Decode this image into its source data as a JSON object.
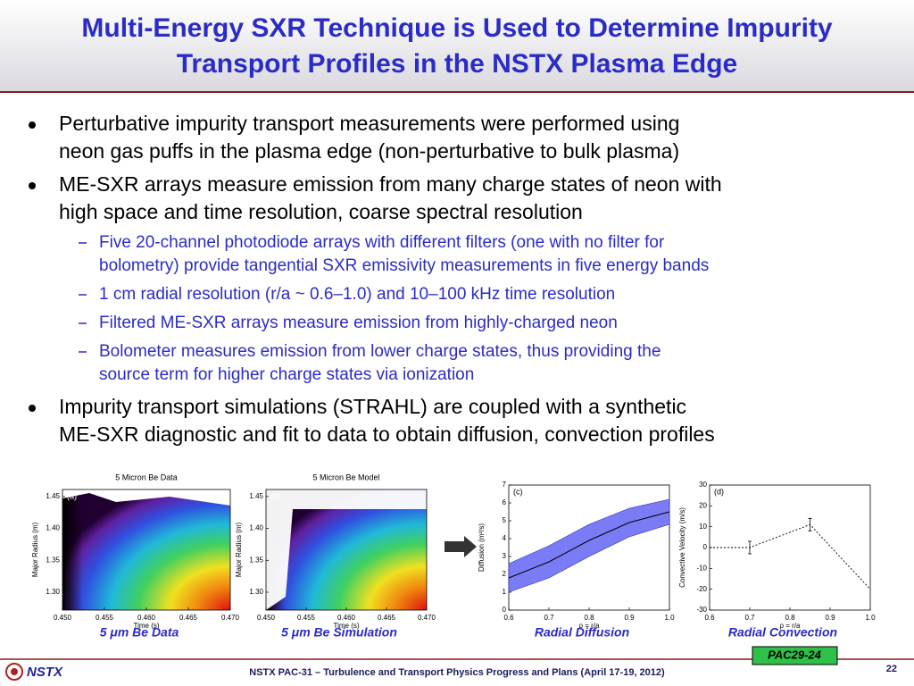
{
  "header": {
    "title_lines": [
      "Multi-Energy SXR Technique is Used to Determine Impurity",
      "Transport Profiles in the NSTX Plasma Edge"
    ]
  },
  "bullets": [
    {
      "lines": [
        "Perturbative impurity transport measurements were performed using",
        "neon gas puffs in the plasma edge (non-perturbative to bulk plasma)"
      ]
    },
    {
      "lines": [
        "ME-SXR arrays measure emission from many charge states of neon with",
        "high space and time resolution, coarse spectral resolution"
      ],
      "sub": [
        {
          "lines": [
            "Five 20-channel photodiode arrays with different filters (one with no filter for",
            "bolometry) provide tangential SXR emissivity measurements in five energy bands"
          ]
        },
        {
          "lines": [
            "1 cm radial resolution (r/a ~ 0.6–1.0) and 10–100 kHz time resolution"
          ]
        },
        {
          "lines": [
            "Filtered ME-SXR arrays measure emission from highly-charged neon"
          ]
        },
        {
          "lines": [
            "Bolometer measures emission from lower charge states, thus providing the",
            "source term for higher charge states via ionization"
          ]
        }
      ]
    },
    {
      "lines": [
        "Impurity transport simulations (STRAHL) are coupled with a synthetic",
        "ME-SXR diagnostic and fit to data to obtain diffusion, convection profiles"
      ]
    }
  ],
  "figures": [
    {
      "type": "heatmap",
      "title": "5 Micron Be Data",
      "tag": "(a)",
      "xlabel": "Time (s)",
      "ylabel": "Major Radius (m)",
      "xlim": [
        0.45,
        0.47
      ],
      "ylim": [
        1.272,
        1.461
      ],
      "xticks": [
        {
          "value": 0.45,
          "label": "0.450"
        },
        {
          "value": 0.455,
          "label": "0.455"
        },
        {
          "value": 0.46,
          "label": "0.460"
        },
        {
          "value": 0.465,
          "label": "0.465"
        },
        {
          "value": 0.47,
          "label": "0.470"
        }
      ],
      "yticks": [
        {
          "value": 1.3,
          "label": "1.30"
        },
        {
          "value": 1.35,
          "label": "1.35"
        },
        {
          "value": 1.4,
          "label": "1.40"
        },
        {
          "value": 1.45,
          "label": "1.45"
        }
      ],
      "caption": "5 μm Be Data"
    },
    {
      "type": "heatmap",
      "title": "5 Micron Be Model",
      "tag": "(b)",
      "xlabel": "Time (s)",
      "ylabel": "Major Radius (m)",
      "xlim": [
        0.45,
        0.47
      ],
      "ylim": [
        1.272,
        1.461
      ],
      "xticks": [
        {
          "value": 0.45,
          "label": "0.450"
        },
        {
          "value": 0.455,
          "label": "0.455"
        },
        {
          "value": 0.46,
          "label": "0.460"
        },
        {
          "value": 0.465,
          "label": "0.465"
        },
        {
          "value": 0.47,
          "label": "0.470"
        }
      ],
      "yticks": [
        {
          "value": 1.3,
          "label": "1.30"
        },
        {
          "value": 1.35,
          "label": "1.35"
        },
        {
          "value": 1.4,
          "label": "1.40"
        },
        {
          "value": 1.45,
          "label": "1.45"
        }
      ],
      "caption": "5 μm Be Simulation"
    },
    {
      "type": "band",
      "tag": "(c)",
      "xlabel": "ρ = r/a",
      "ylabel": "Diffusion (m²/s)",
      "xlim": [
        0.6,
        1.0
      ],
      "ylim": [
        0,
        7
      ],
      "xticks": [
        0.6,
        0.7,
        0.8,
        0.9,
        {
          "value": 1.0,
          "label": "1.0"
        }
      ],
      "yticks": [
        0,
        1,
        2,
        3,
        4,
        5,
        6,
        7
      ],
      "x": [
        0.6,
        0.7,
        0.8,
        0.9,
        1.0
      ],
      "values": [
        1.8,
        2.7,
        3.9,
        4.9,
        5.5
      ],
      "upper": [
        2.6,
        3.6,
        4.8,
        5.7,
        6.2
      ],
      "lower": [
        1.0,
        1.8,
        3.0,
        4.1,
        4.8
      ],
      "color": "#7b7bf5",
      "caption": "Radial Diffusion"
    },
    {
      "type": "errorline",
      "tag": "(d)",
      "xlabel": "ρ = r/a",
      "ylabel": "Convective Velocity (m/s)",
      "xlim": [
        0.6,
        1.0
      ],
      "ylim": [
        -30,
        30
      ],
      "xticks": [
        0.6,
        0.7,
        0.8,
        0.9,
        {
          "value": 1.0,
          "label": "1.0"
        }
      ],
      "yticks": [
        -30,
        -20,
        -10,
        0,
        10,
        20,
        30
      ],
      "x": [
        0.6,
        0.7,
        0.85,
        1.0
      ],
      "values": [
        0,
        0,
        11,
        -20
      ],
      "errors": [
        null,
        3,
        3,
        null
      ],
      "caption": "Radial Convection"
    }
  ],
  "footer": {
    "logo": "NSTX",
    "text": "NSTX PAC-31 – Turbulence and Transport Physics Progress and Plans (April 17-19, 2012)",
    "page": "22",
    "badge": "PAC29-24"
  }
}
